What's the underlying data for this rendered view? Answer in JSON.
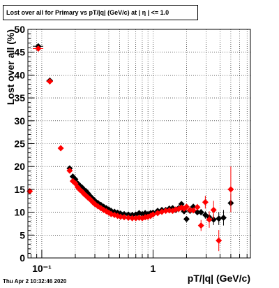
{
  "title": "Lost over all for Primary vs pT/|q| (GeV/c) at |  η | <= 1.0",
  "footer": "Thu Apr  2 10:32:46 2020",
  "chart_data": {
    "type": "scatter",
    "title": "Lost over all for Primary vs pT/|q| (GeV/c) at |  η | <= 1.0",
    "xlabel": "pT/|q| (GeV/c)",
    "ylabel": "Lost over all (%)",
    "xscale": "log",
    "xlim": [
      0.075,
      7.5
    ],
    "ylim": [
      0,
      50
    ],
    "x_ticks": [
      {
        "value": 0.1,
        "label": "10⁻¹"
      },
      {
        "value": 1,
        "label": "1"
      }
    ],
    "y_ticks": [
      0,
      5,
      10,
      15,
      20,
      25,
      30,
      35,
      40,
      45,
      50
    ],
    "grid": true,
    "series": [
      {
        "color": "#000000",
        "marker": "diamond",
        "points": [
          [
            0.093,
            46.3,
            0.01,
            0.4
          ],
          [
            0.118,
            38.8,
            0.008,
            0.4
          ],
          [
            0.178,
            19.6,
            0.005,
            0.4
          ],
          [
            0.19,
            17.8,
            0.004,
            0.3
          ],
          [
            0.2,
            17.2,
            0.004,
            0.3
          ],
          [
            0.21,
            16.3,
            0.004,
            0.3
          ],
          [
            0.22,
            15.8,
            0.004,
            0.3
          ],
          [
            0.23,
            15.4,
            0.005,
            0.3
          ],
          [
            0.24,
            14.9,
            0.005,
            0.3
          ],
          [
            0.25,
            14.6,
            0.005,
            0.3
          ],
          [
            0.26,
            14.1,
            0.005,
            0.3
          ],
          [
            0.27,
            13.6,
            0.005,
            0.3
          ],
          [
            0.28,
            13.2,
            0.005,
            0.3
          ],
          [
            0.29,
            12.8,
            0.006,
            0.3
          ],
          [
            0.3,
            12.5,
            0.006,
            0.3
          ],
          [
            0.32,
            12.0,
            0.006,
            0.3
          ],
          [
            0.34,
            11.6,
            0.007,
            0.3
          ],
          [
            0.36,
            11.2,
            0.007,
            0.3
          ],
          [
            0.38,
            10.9,
            0.008,
            0.3
          ],
          [
            0.4,
            10.6,
            0.008,
            0.3
          ],
          [
            0.42,
            10.3,
            0.008,
            0.3
          ],
          [
            0.45,
            10.1,
            0.009,
            0.3
          ],
          [
            0.48,
            9.9,
            0.01,
            0.3
          ],
          [
            0.51,
            9.7,
            0.01,
            0.3
          ],
          [
            0.55,
            9.6,
            0.011,
            0.3
          ],
          [
            0.6,
            9.5,
            0.012,
            0.3
          ],
          [
            0.65,
            9.4,
            0.013,
            0.3
          ],
          [
            0.7,
            9.5,
            0.014,
            0.3
          ],
          [
            0.75,
            9.8,
            0.015,
            0.3
          ],
          [
            0.8,
            9.6,
            0.016,
            0.3
          ],
          [
            0.85,
            9.8,
            0.017,
            0.3
          ],
          [
            0.9,
            9.6,
            0.018,
            0.3
          ],
          [
            0.95,
            9.8,
            0.019,
            0.3
          ],
          [
            1.0,
            9.9,
            0.02,
            0.3
          ],
          [
            1.1,
            10.3,
            0.022,
            0.3
          ],
          [
            1.2,
            10.5,
            0.024,
            0.3
          ],
          [
            1.3,
            10.5,
            0.026,
            0.3
          ],
          [
            1.4,
            10.8,
            0.028,
            0.3
          ],
          [
            1.5,
            10.9,
            0.03,
            0.3
          ],
          [
            1.6,
            10.5,
            0.032,
            0.3
          ],
          [
            1.7,
            10.9,
            0.034,
            0.3
          ],
          [
            1.8,
            11.8,
            0.036,
            0.4
          ],
          [
            1.9,
            10.2,
            0.038,
            0.4
          ],
          [
            2.0,
            8.5,
            0.04,
            0.5
          ],
          [
            2.15,
            10.3,
            0.045,
            0.5
          ],
          [
            2.3,
            11.2,
            0.05,
            0.6
          ],
          [
            2.5,
            10.0,
            0.06,
            0.6
          ],
          [
            2.7,
            10.0,
            0.07,
            0.7
          ],
          [
            2.95,
            9.4,
            0.08,
            0.8
          ],
          [
            3.2,
            8.9,
            0.09,
            1.0
          ],
          [
            3.5,
            8.4,
            0.1,
            1.2
          ],
          [
            3.9,
            8.6,
            0.11,
            1.4
          ],
          [
            4.3,
            8.8,
            0.12,
            1.7
          ],
          [
            5.0,
            12.0,
            0.3,
            2.0
          ]
        ]
      },
      {
        "color": "#ff0000",
        "marker": "diamond",
        "points": [
          [
            0.078,
            14.6,
            0.003,
            0.5
          ],
          [
            0.093,
            45.8,
            0.01,
            0.4
          ],
          [
            0.118,
            38.6,
            0.008,
            0.4
          ],
          [
            0.148,
            24.0,
            0.004,
            0.4
          ],
          [
            0.178,
            19.1,
            0.005,
            0.4
          ],
          [
            0.19,
            16.8,
            0.004,
            0.3
          ],
          [
            0.2,
            16.3,
            0.004,
            0.3
          ],
          [
            0.21,
            15.5,
            0.004,
            0.3
          ],
          [
            0.22,
            14.9,
            0.004,
            0.3
          ],
          [
            0.23,
            14.5,
            0.005,
            0.3
          ],
          [
            0.24,
            14.0,
            0.005,
            0.3
          ],
          [
            0.25,
            13.6,
            0.005,
            0.3
          ],
          [
            0.26,
            13.2,
            0.005,
            0.3
          ],
          [
            0.27,
            12.9,
            0.005,
            0.3
          ],
          [
            0.28,
            12.5,
            0.005,
            0.3
          ],
          [
            0.29,
            12.1,
            0.006,
            0.3
          ],
          [
            0.3,
            11.8,
            0.006,
            0.3
          ],
          [
            0.32,
            11.3,
            0.006,
            0.3
          ],
          [
            0.34,
            10.9,
            0.007,
            0.3
          ],
          [
            0.36,
            10.5,
            0.007,
            0.3
          ],
          [
            0.38,
            10.2,
            0.008,
            0.3
          ],
          [
            0.4,
            9.9,
            0.008,
            0.3
          ],
          [
            0.42,
            9.6,
            0.008,
            0.3
          ],
          [
            0.45,
            9.4,
            0.009,
            0.3
          ],
          [
            0.48,
            9.2,
            0.01,
            0.3
          ],
          [
            0.51,
            9.0,
            0.01,
            0.3
          ],
          [
            0.55,
            8.9,
            0.011,
            0.3
          ],
          [
            0.6,
            8.8,
            0.012,
            0.3
          ],
          [
            0.65,
            8.7,
            0.013,
            0.3
          ],
          [
            0.7,
            8.7,
            0.014,
            0.3
          ],
          [
            0.75,
            8.8,
            0.015,
            0.3
          ],
          [
            0.8,
            8.7,
            0.016,
            0.3
          ],
          [
            0.85,
            8.9,
            0.017,
            0.3
          ],
          [
            0.9,
            9.0,
            0.018,
            0.3
          ],
          [
            0.95,
            9.2,
            0.019,
            0.3
          ],
          [
            1.0,
            9.5,
            0.02,
            0.3
          ],
          [
            1.1,
            9.8,
            0.022,
            0.3
          ],
          [
            1.2,
            10.1,
            0.024,
            0.3
          ],
          [
            1.3,
            10.3,
            0.026,
            0.3
          ],
          [
            1.4,
            10.4,
            0.028,
            0.3
          ],
          [
            1.5,
            10.3,
            0.03,
            0.3
          ],
          [
            1.6,
            10.6,
            0.032,
            0.3
          ],
          [
            1.7,
            10.7,
            0.034,
            0.3
          ],
          [
            1.8,
            11.0,
            0.036,
            0.4
          ],
          [
            1.9,
            10.8,
            0.038,
            0.4
          ],
          [
            2.0,
            11.2,
            0.04,
            0.5
          ],
          [
            2.15,
            10.5,
            0.045,
            0.5
          ],
          [
            2.3,
            10.4,
            0.05,
            0.6
          ],
          [
            2.5,
            11.1,
            0.06,
            0.7
          ],
          [
            2.7,
            7.1,
            0.07,
            1.2
          ],
          [
            2.95,
            12.2,
            0.08,
            1.4
          ],
          [
            3.2,
            8.4,
            0.09,
            1.8
          ],
          [
            3.5,
            10.5,
            0.1,
            2.0
          ],
          [
            3.9,
            3.8,
            0.11,
            2.3
          ],
          [
            5.0,
            15.0,
            0.3,
            5.0
          ]
        ]
      }
    ]
  }
}
